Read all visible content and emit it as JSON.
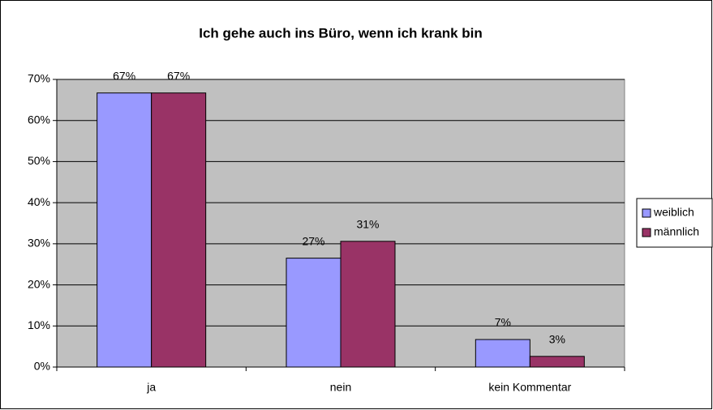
{
  "chart_data": {
    "type": "bar",
    "title": "Ich gehe auch ins Büro, wenn ich krank bin",
    "categories": [
      "ja",
      "nein",
      "kein Kommentar"
    ],
    "series": [
      {
        "name": "weiblich",
        "color": "#9999ff",
        "values": [
          66.7,
          26.5,
          6.7
        ],
        "value_labels": [
          "67%",
          "27%",
          "7%"
        ]
      },
      {
        "name": "männlich",
        "color": "#993366",
        "values": [
          66.7,
          30.6,
          2.6
        ],
        "value_labels": [
          "67%",
          "31%",
          "3%"
        ]
      }
    ],
    "ylim": [
      0,
      70
    ],
    "yticks": [
      {
        "value": 0,
        "label": "0%"
      },
      {
        "value": 10,
        "label": "10%"
      },
      {
        "value": 20,
        "label": "20%"
      },
      {
        "value": 30,
        "label": "30%"
      },
      {
        "value": 40,
        "label": "40%"
      },
      {
        "value": 50,
        "label": "50%"
      },
      {
        "value": 60,
        "label": "60%"
      },
      {
        "value": 70,
        "label": "70%"
      }
    ],
    "grid": true,
    "legend": "right",
    "plot_background": "#c0c0c0"
  }
}
